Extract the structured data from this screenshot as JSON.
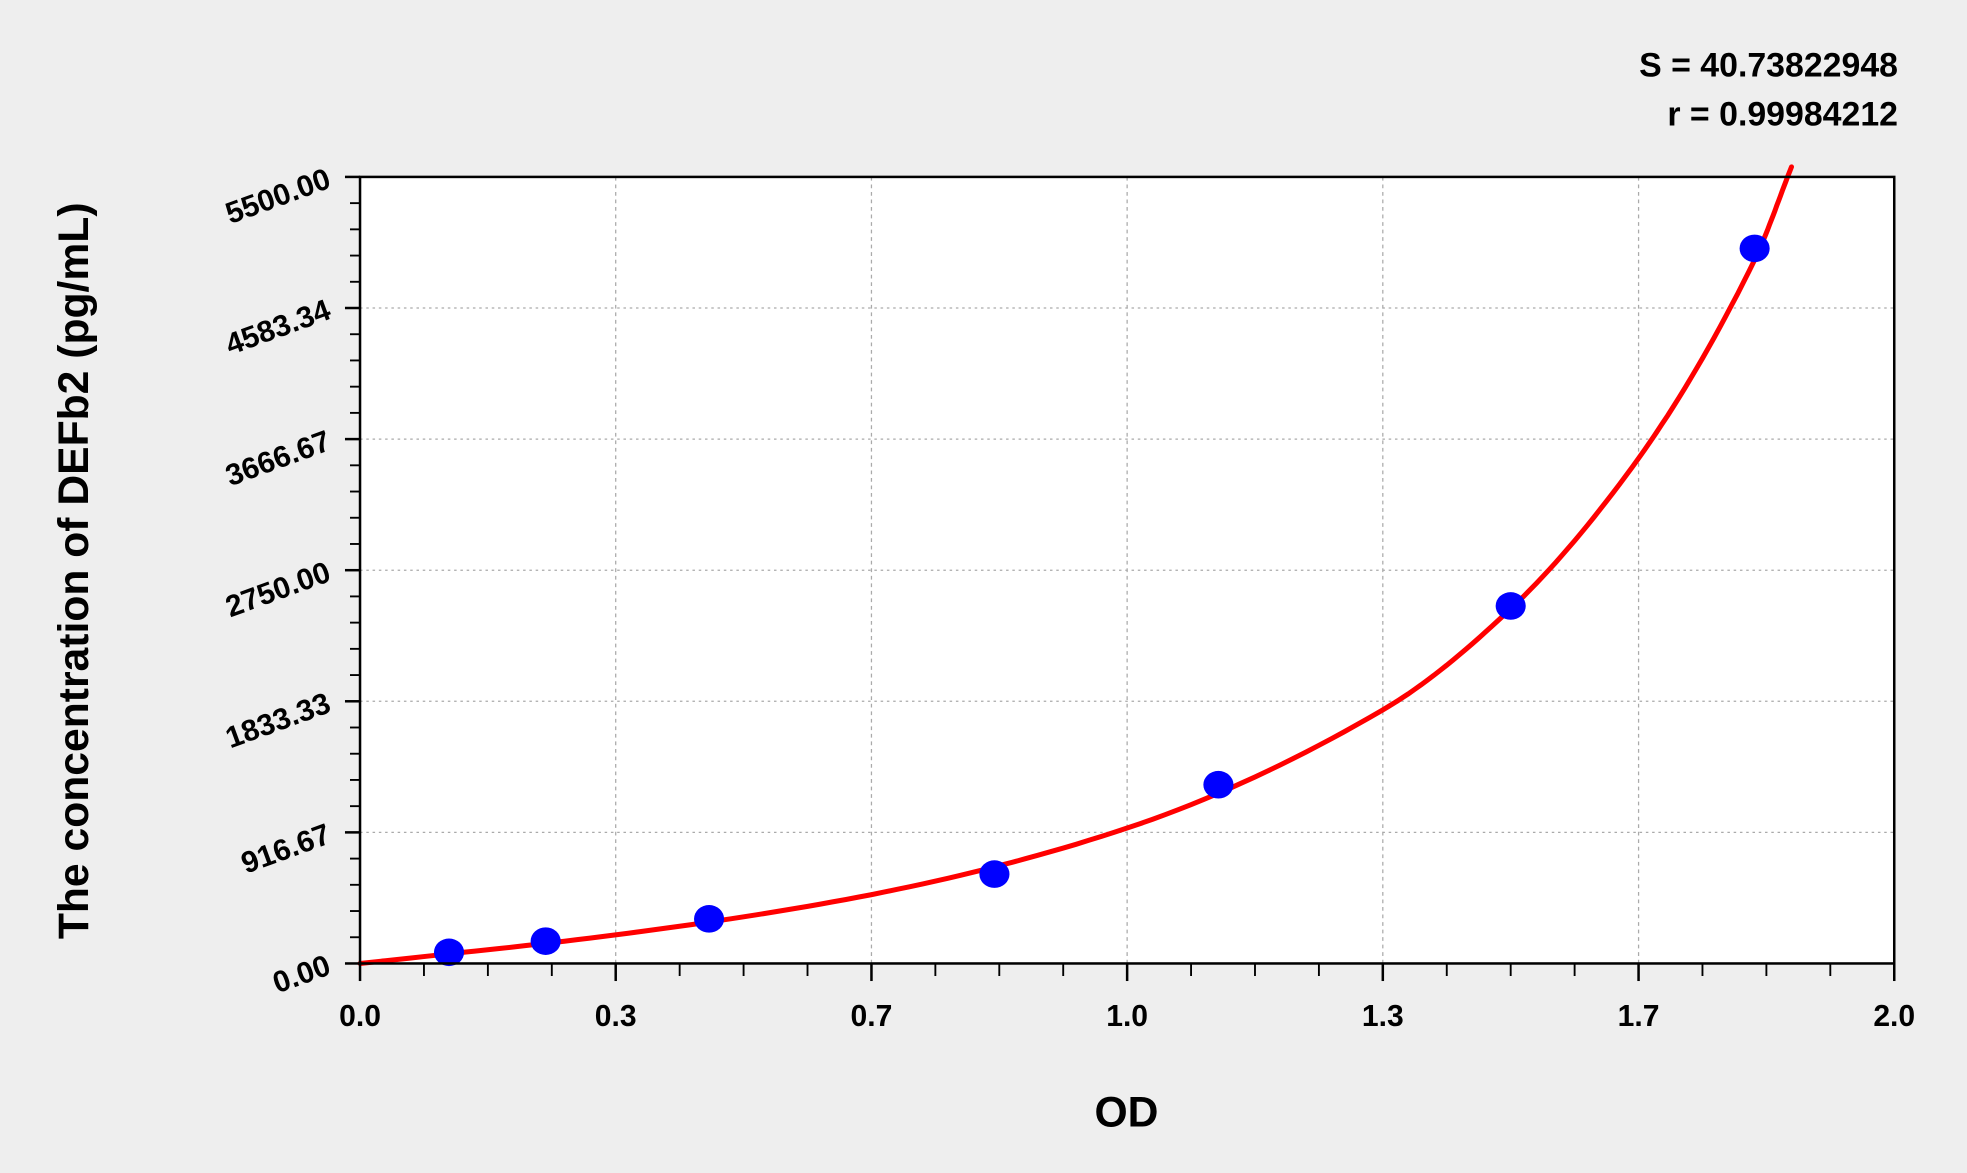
{
  "chart_data": {
    "type": "scatter",
    "xlabel": "OD",
    "ylabel": "The concentration of DEFb2 (pg/mL)",
    "xlim": [
      0,
      2
    ],
    "ylim": [
      0,
      5500
    ],
    "x_ticks": [
      0,
      0.3333,
      0.6667,
      1.0,
      1.3333,
      1.6667,
      2.0
    ],
    "x_tick_labels": [
      "0.0",
      "0.3",
      "0.7",
      "1.0",
      "1.3",
      "1.7",
      "2.0"
    ],
    "y_ticks": [
      0,
      916.67,
      1833.33,
      2750,
      3666.67,
      4583.34,
      5500
    ],
    "y_tick_labels": [
      "0.00",
      "916.67",
      "1833.33",
      "2750.00",
      "3666.67",
      "4583.34",
      "5500.00"
    ],
    "grid": true,
    "stats": [
      "S = 40.73822948",
      "r = 0.99984212"
    ],
    "points": [
      {
        "x": 0.116,
        "y": 78
      },
      {
        "x": 0.242,
        "y": 156
      },
      {
        "x": 0.455,
        "y": 312
      },
      {
        "x": 0.827,
        "y": 625
      },
      {
        "x": 1.119,
        "y": 1250
      },
      {
        "x": 1.5,
        "y": 2500
      },
      {
        "x": 1.818,
        "y": 5000
      }
    ],
    "fit_curve": [
      [
        0,
        0
      ],
      [
        0.333,
        200
      ],
      [
        0.667,
        482
      ],
      [
        1.0,
        947
      ],
      [
        1.333,
        1772
      ],
      [
        1.5,
        2480
      ],
      [
        1.667,
        3535
      ],
      [
        1.818,
        4920
      ],
      [
        1.866,
        5570
      ]
    ],
    "colors": {
      "points": "#0000ff",
      "curve": "#ff0000",
      "background": "#eeeeee",
      "plot": "#ffffff"
    }
  }
}
